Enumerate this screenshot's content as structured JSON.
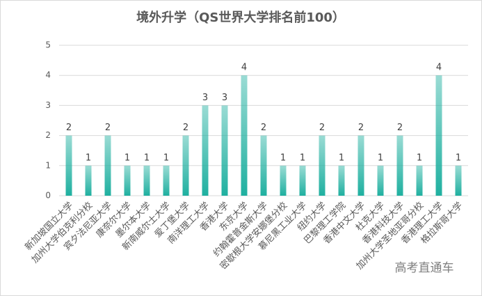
{
  "chart_data": {
    "type": "bar",
    "title": "境外升学（QS世界大学排名前100）",
    "categories": [
      "新加坡国立大学",
      "加州大学伯克利分校",
      "宾夕法尼亚大学",
      "康奈尔大学",
      "墨尔本大学",
      "新南威尔士大学",
      "爱丁堡大学",
      "南洋理工大学",
      "香港大学",
      "东京大学",
      "约翰霍普金斯大学",
      "密歇根大学安娜堡分校",
      "慕尼黑工业大学",
      "纽约大学",
      "巴黎理工学院",
      "香港中文大学",
      "杜克大学",
      "香港科技大学",
      "加州大学圣地亚哥分校",
      "香港理工大学",
      "格拉斯哥大学"
    ],
    "values": [
      2,
      1,
      2,
      1,
      1,
      1,
      2,
      3,
      3,
      4,
      2,
      1,
      1,
      2,
      1,
      2,
      1,
      2,
      1,
      4,
      1
    ],
    "color": "#1fb0a0",
    "ylim": [
      0,
      5
    ],
    "yticks": [
      0,
      1,
      2,
      3,
      4,
      5
    ],
    "grid": true,
    "watermark": "高考直通车"
  }
}
